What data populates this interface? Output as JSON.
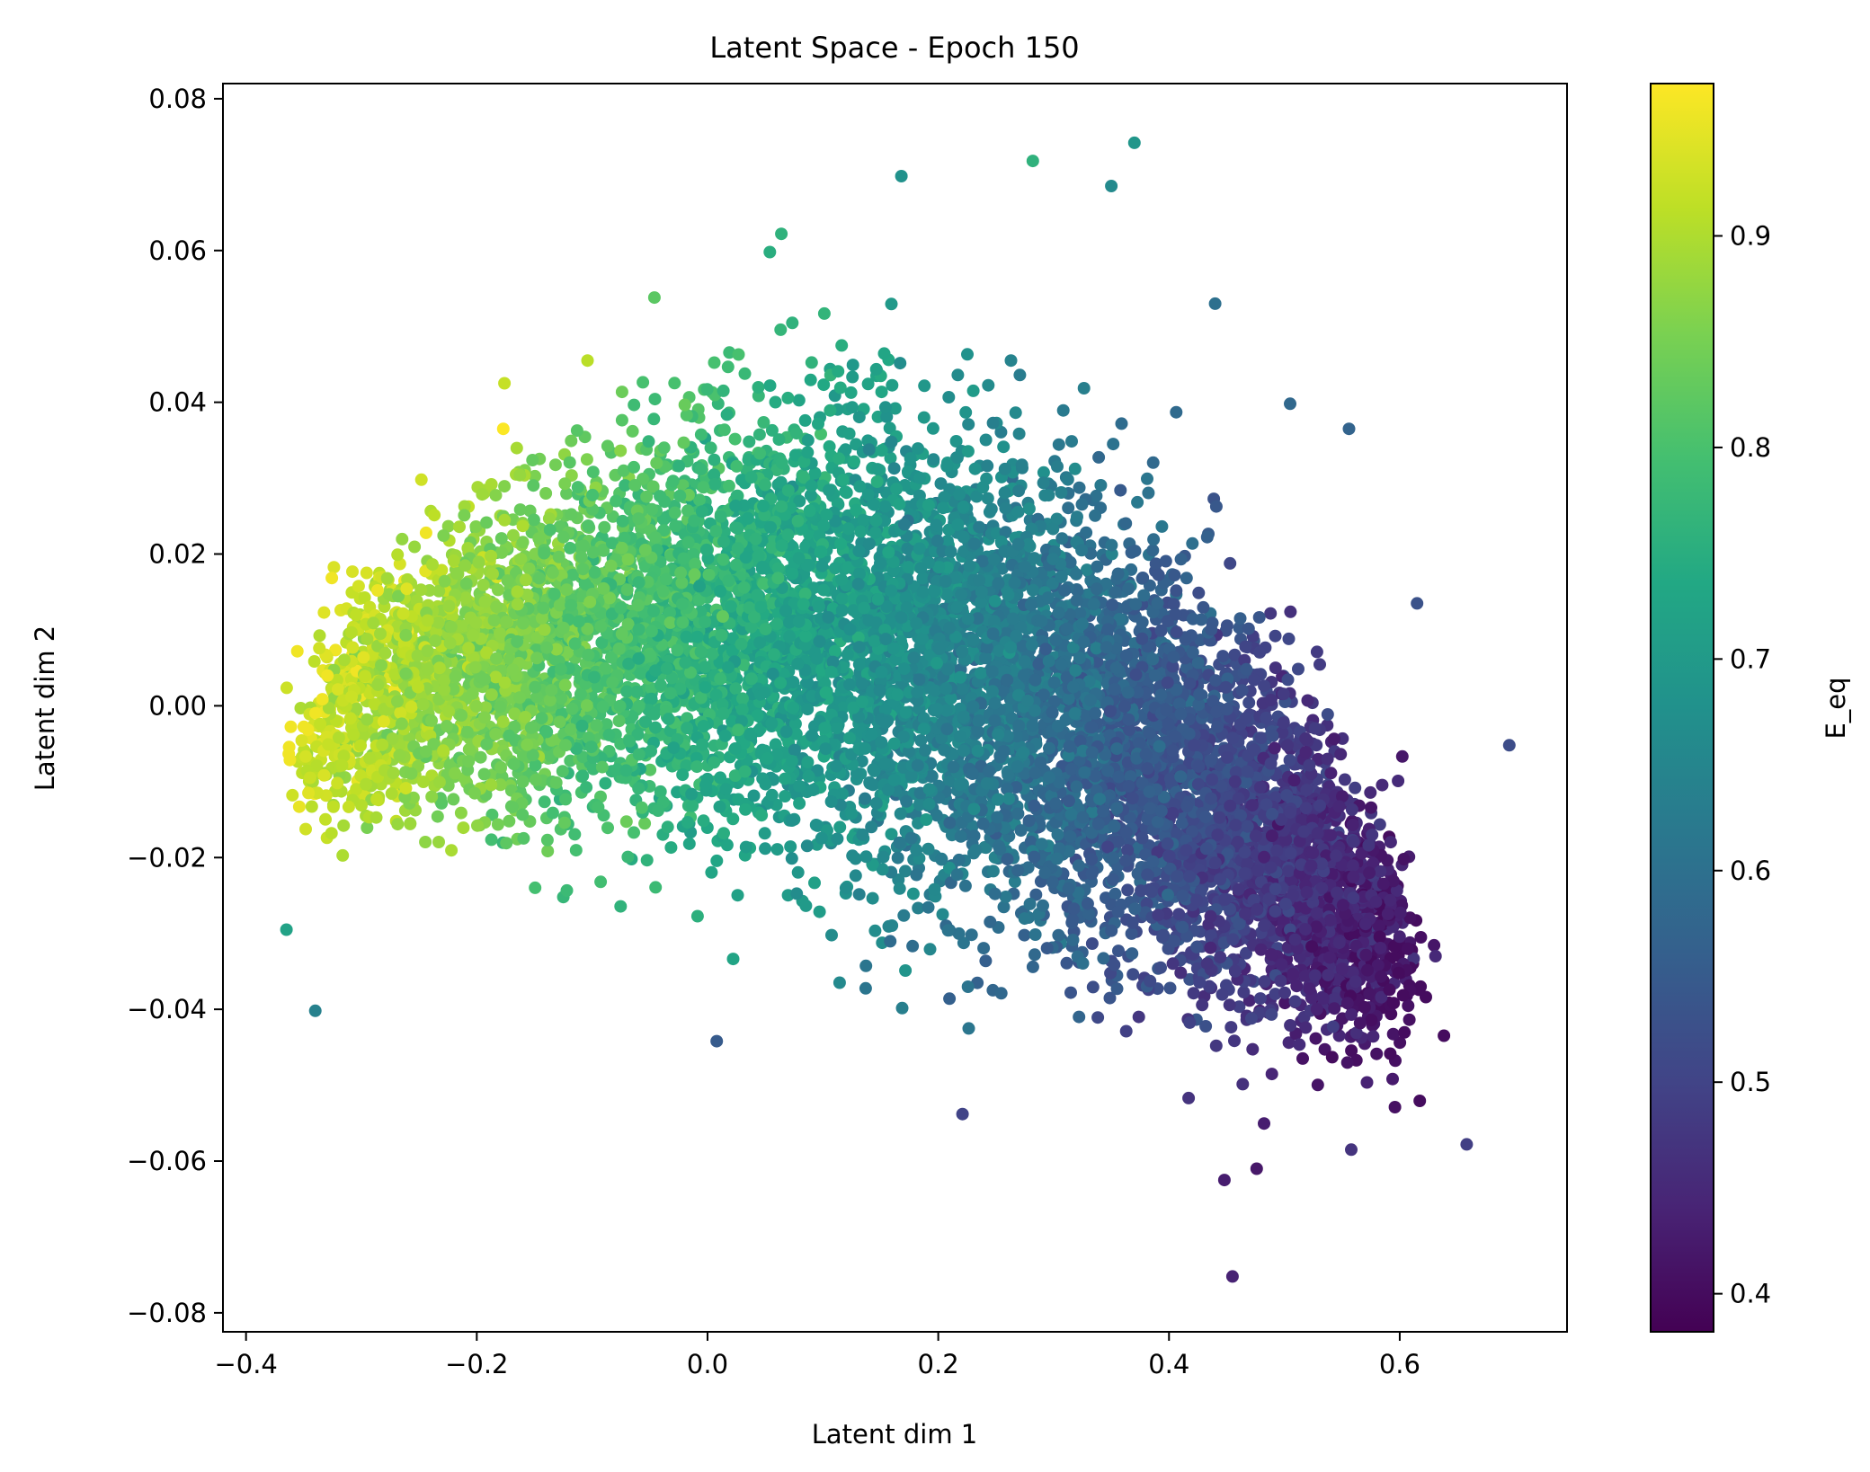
{
  "chart_data": {
    "type": "scatter",
    "title": "Latent Space - Epoch 150",
    "xlabel": "Latent dim 1",
    "ylabel": "Latent dim 2",
    "xlim": [
      -0.42,
      0.745
    ],
    "ylim": [
      -0.0825,
      0.082
    ],
    "xticks": [
      -0.4,
      -0.2,
      0.0,
      0.2,
      0.4,
      0.6
    ],
    "xtick_labels": [
      "−0.4",
      "−0.2",
      "0.0",
      "0.2",
      "0.4",
      "0.6"
    ],
    "yticks": [
      -0.08,
      -0.06,
      -0.04,
      -0.02,
      0.0,
      0.02,
      0.04,
      0.06,
      0.08
    ],
    "ytick_labels": [
      "−0.08",
      "−0.06",
      "−0.04",
      "−0.02",
      "0.00",
      "0.02",
      "0.04",
      "0.06",
      "0.08"
    ],
    "grid": false,
    "colormap": "viridis",
    "colorbar": {
      "label": "E_eq",
      "range": [
        0.382,
        0.972
      ],
      "ticks": [
        0.4,
        0.5,
        0.6,
        0.7,
        0.8,
        0.9
      ],
      "tick_labels": [
        "0.4",
        "0.5",
        "0.6",
        "0.7",
        "0.8",
        "0.9"
      ]
    },
    "point_cloud": {
      "approx_count": 9000,
      "x_range": [
        -0.365,
        0.695
      ],
      "y_range": [
        -0.075,
        0.0745
      ],
      "color_trend": "E_eq decreases from ~0.95 at left (x≈-0.3) to ~0.42 at lower right (x≈0.5)"
    },
    "outliers": [
      {
        "x": -0.365,
        "y": -0.0295,
        "c": 0.72
      },
      {
        "x": -0.34,
        "y": -0.0402,
        "c": 0.64
      },
      {
        "x": 0.37,
        "y": 0.0742,
        "c": 0.69
      },
      {
        "x": 0.282,
        "y": 0.0718,
        "c": 0.76
      },
      {
        "x": 0.168,
        "y": 0.0698,
        "c": 0.68
      },
      {
        "x": 0.35,
        "y": 0.0685,
        "c": 0.66
      },
      {
        "x": 0.064,
        "y": 0.0622,
        "c": 0.76
      },
      {
        "x": 0.054,
        "y": 0.0598,
        "c": 0.75
      },
      {
        "x": -0.046,
        "y": 0.0538,
        "c": 0.82
      },
      {
        "x": 0.695,
        "y": -0.0052,
        "c": 0.52
      },
      {
        "x": 0.615,
        "y": 0.0135,
        "c": 0.53
      },
      {
        "x": 0.556,
        "y": 0.0365,
        "c": 0.57
      },
      {
        "x": 0.505,
        "y": 0.0398,
        "c": 0.58
      },
      {
        "x": 0.455,
        "y": -0.0752,
        "c": 0.44
      },
      {
        "x": 0.658,
        "y": -0.0578,
        "c": 0.49
      },
      {
        "x": 0.448,
        "y": -0.0625,
        "c": 0.43
      },
      {
        "x": 0.476,
        "y": -0.061,
        "c": 0.42
      },
      {
        "x": 0.558,
        "y": -0.0585,
        "c": 0.47
      },
      {
        "x": 0.221,
        "y": -0.0538,
        "c": 0.5
      },
      {
        "x": 0.008,
        "y": -0.0442,
        "c": 0.55
      },
      {
        "x": 0.631,
        "y": -0.033,
        "c": 0.45
      },
      {
        "x": 0.44,
        "y": 0.053,
        "c": 0.6
      },
      {
        "x": -0.104,
        "y": 0.0455,
        "c": 0.91
      },
      {
        "x": -0.176,
        "y": 0.0425,
        "c": 0.92
      },
      {
        "x": -0.177,
        "y": 0.0365,
        "c": 0.97
      },
      {
        "x": -0.248,
        "y": 0.0298,
        "c": 0.93
      },
      {
        "x": -0.244,
        "y": 0.0228,
        "c": 0.96
      }
    ]
  }
}
